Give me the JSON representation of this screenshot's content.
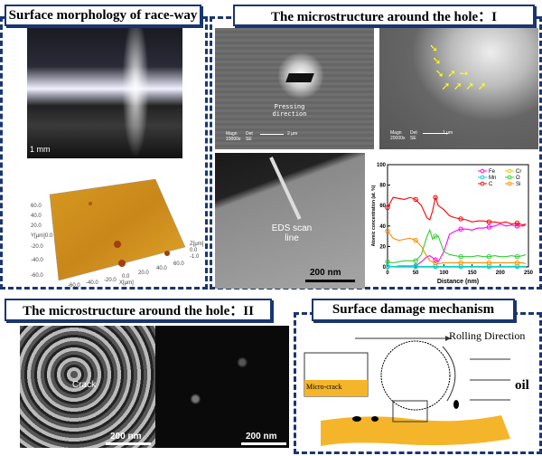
{
  "panels": {
    "p1": {
      "title": "Surface morphology of race-way",
      "scale": "1 mm",
      "afm": {
        "y_label": "Y[μm]",
        "x_label": "X[μm]",
        "z_label": "Z[μm]",
        "y_ticks": [
          "60.0",
          "40.0",
          "20.0",
          "0.0",
          "-20.0",
          "-40.0",
          "-60.0"
        ],
        "x_ticks": [
          "-60.0",
          "-40.0",
          "-20.0",
          "0.0",
          "20.0",
          "40.0",
          "60.0"
        ],
        "z_ticks": [
          "0.0",
          "-1.0"
        ]
      }
    },
    "p2": {
      "title": "The microstructure around the hole：I",
      "sem1": {
        "annotation": "Pressing direction",
        "magn": "Magn 10000x",
        "det": "Det SE",
        "scale": "2 μm"
      },
      "sem2": {
        "magn": "Magn 20000x",
        "det": "Det SE",
        "scale": "1 μm"
      },
      "tem": {
        "annotation": "EDS scan line",
        "scale": "200 nm"
      }
    },
    "p3": {
      "title": "The microstructure around the hole：II",
      "crack": "Crack",
      "scale1": "200 nm",
      "scale2": "200 nm"
    },
    "p4": {
      "title": "Surface damage mechanism",
      "rolling": "Rolling Direction",
      "oil": "oil",
      "microcrack": "Micro-crack"
    }
  },
  "colors": {
    "frame": "#1a3670",
    "coating": "#f5b52a"
  },
  "chart_data": {
    "type": "line",
    "xlabel": "Distance (nm)",
    "ylabel": "Atomic concentration (at. %)",
    "xlim": [
      0,
      250
    ],
    "ylim": [
      0,
      100
    ],
    "x_ticks": [
      "0",
      "50",
      "100",
      "150",
      "200",
      "250"
    ],
    "y_ticks": [
      "0",
      "20",
      "40",
      "60",
      "80",
      "100"
    ],
    "legend_position": "top-right",
    "x": [
      0,
      10,
      20,
      30,
      40,
      50,
      60,
      70,
      75,
      80,
      85,
      90,
      100,
      110,
      120,
      130,
      140,
      150,
      160,
      170,
      180,
      190,
      200,
      210,
      220,
      230,
      240,
      245
    ],
    "series": [
      {
        "name": "Fe",
        "color": "#ff00ff",
        "marker": "square",
        "values": [
          0,
          0,
          1,
          1,
          1,
          1,
          5,
          10,
          11,
          9,
          7,
          5,
          15,
          32,
          35,
          37,
          37,
          36,
          38,
          38,
          39,
          40,
          42,
          40,
          41,
          40,
          40,
          41
        ]
      },
      {
        "name": "Cr",
        "color": "#e6c800",
        "marker": "circle",
        "values": [
          0.3,
          0.3,
          0.3,
          0.3,
          0.3,
          0.3,
          0.3,
          0.3,
          0.3,
          0.3,
          0.3,
          0.3,
          0.3,
          0.3,
          0.3,
          0.3,
          0.3,
          0.3,
          0.3,
          0.3,
          0.3,
          0.3,
          0.3,
          0.3,
          0.3,
          0.3,
          0.3,
          0.3
        ]
      },
      {
        "name": "Mn",
        "color": "#00d5d5",
        "marker": "triangle",
        "values": [
          0.5,
          0.5,
          0.5,
          0.5,
          0.5,
          0.5,
          0.5,
          0.5,
          0.5,
          0.5,
          0.5,
          0.5,
          0.5,
          0.5,
          0.5,
          0.5,
          0.5,
          0.5,
          0.5,
          0.5,
          0.5,
          0.5,
          0.5,
          0.5,
          0.5,
          0.5,
          0.5,
          0.5
        ]
      },
      {
        "name": "O",
        "color": "#33cc33",
        "marker": "triangle-down",
        "values": [
          5,
          4,
          5,
          6,
          6,
          6,
          12,
          30,
          36,
          27,
          30,
          30,
          15,
          12,
          11,
          10,
          10,
          10,
          11,
          10,
          10,
          11,
          10,
          10,
          11,
          10,
          11,
          12
        ]
      },
      {
        "name": "C",
        "color": "#ff0000",
        "marker": "circle",
        "values": [
          58,
          68,
          67,
          66,
          68,
          66,
          60,
          48,
          46,
          55,
          68,
          60,
          56,
          50,
          48,
          47,
          46,
          44,
          45,
          45,
          44,
          44,
          43,
          44,
          42,
          43,
          41,
          42
        ]
      },
      {
        "name": "Si",
        "color": "#ff8c00",
        "marker": "diamond",
        "values": [
          35,
          28,
          26,
          27,
          28,
          26,
          20,
          10,
          6,
          5,
          4,
          3,
          4,
          4,
          4,
          4,
          4,
          4,
          4,
          4,
          4,
          4,
          4,
          4,
          4,
          4,
          4,
          3
        ]
      }
    ]
  }
}
